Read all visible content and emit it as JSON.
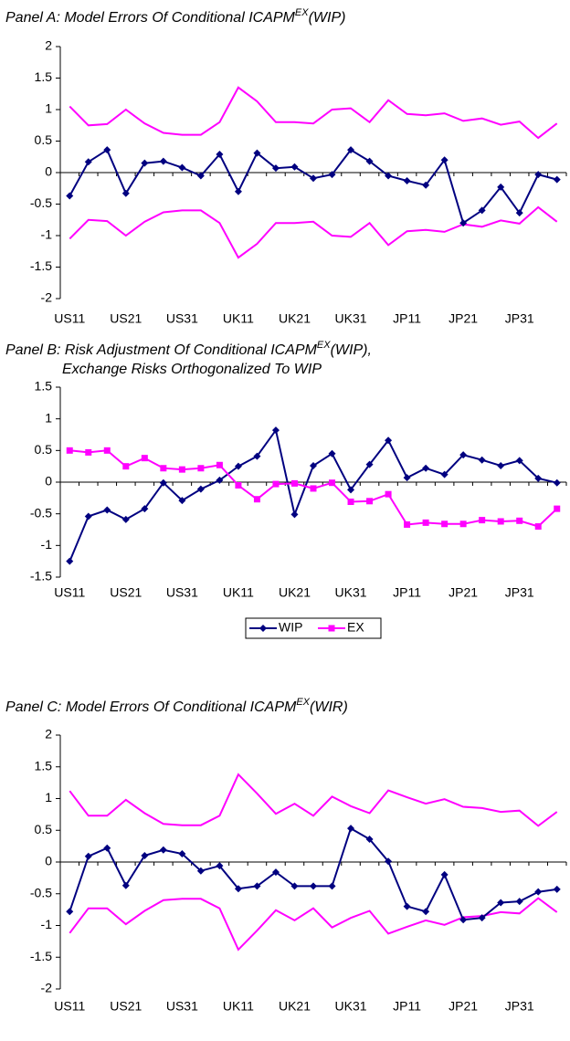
{
  "chart_data": [
    {
      "type": "line",
      "title": {
        "text": "Panel A: Model Errors Of Conditional ICAPM",
        "superscript": "EX",
        "suffix": "(WIP)"
      },
      "categories": [
        "US11",
        null,
        null,
        "US21",
        null,
        null,
        "US31",
        null,
        null,
        "UK11",
        null,
        null,
        "UK21",
        null,
        null,
        "UK31",
        null,
        null,
        "JP11",
        null,
        null,
        "JP21",
        null,
        null,
        "JP31",
        null,
        null
      ],
      "ylim": [
        -2,
        2
      ],
      "yticks": [
        -2,
        -1.5,
        -1,
        -0.5,
        0,
        0.5,
        1,
        1.5,
        2
      ],
      "series": [
        {
          "color": "#ff00ff",
          "marker": "none",
          "values": [
            1.05,
            0.75,
            0.77,
            1.0,
            0.78,
            0.63,
            0.6,
            0.6,
            0.8,
            1.35,
            1.13,
            0.8,
            0.8,
            0.78,
            1.0,
            1.02,
            0.8,
            1.15,
            0.93,
            0.91,
            0.94,
            0.82,
            0.86,
            0.76,
            0.81,
            0.55,
            0.78
          ]
        },
        {
          "color": "#ff00ff",
          "marker": "none",
          "values": [
            -1.05,
            -0.75,
            -0.77,
            -1.0,
            -0.78,
            -0.63,
            -0.6,
            -0.6,
            -0.8,
            -1.35,
            -1.13,
            -0.8,
            -0.8,
            -0.78,
            -1.0,
            -1.02,
            -0.8,
            -1.15,
            -0.93,
            -0.91,
            -0.94,
            -0.82,
            -0.86,
            -0.76,
            -0.81,
            -0.55,
            -0.78
          ]
        },
        {
          "color": "#000080",
          "marker": "diamond",
          "values": [
            -0.37,
            0.17,
            0.36,
            -0.33,
            0.15,
            0.18,
            0.08,
            -0.05,
            0.29,
            -0.3,
            0.31,
            0.07,
            0.09,
            -0.09,
            -0.03,
            0.36,
            0.18,
            -0.05,
            -0.13,
            -0.2,
            0.2,
            -0.8,
            -0.6,
            -0.23,
            -0.64,
            -0.03,
            -0.11
          ]
        }
      ]
    },
    {
      "type": "line",
      "title": {
        "text": "Panel B: Risk Adjustment Of Conditional ICAPM",
        "superscript": "EX",
        "suffix": "(WIP),"
      },
      "subtitle": "Exchange Risks Orthogonalized To WIP",
      "categories": [
        "US11",
        null,
        null,
        "US21",
        null,
        null,
        "US31",
        null,
        null,
        "UK11",
        null,
        null,
        "UK21",
        null,
        null,
        "UK31",
        null,
        null,
        "JP11",
        null,
        null,
        "JP21",
        null,
        null,
        "JP31",
        null,
        null
      ],
      "ylim": [
        -1.5,
        1.5
      ],
      "yticks": [
        -1.5,
        -1,
        -0.5,
        0,
        0.5,
        1,
        1.5
      ],
      "legend": "bottom",
      "series": [
        {
          "name": "WIP",
          "color": "#000080",
          "marker": "diamond",
          "values": [
            -1.25,
            -0.54,
            -0.44,
            -0.59,
            -0.42,
            -0.01,
            -0.29,
            -0.11,
            0.03,
            0.25,
            0.41,
            0.82,
            -0.51,
            0.26,
            0.45,
            -0.12,
            0.28,
            0.66,
            0.07,
            0.22,
            0.12,
            0.43,
            0.35,
            0.26,
            0.34,
            0.06,
            -0.01
          ]
        },
        {
          "name": "EX",
          "color": "#ff00ff",
          "marker": "square",
          "values": [
            0.5,
            0.47,
            0.5,
            0.25,
            0.38,
            0.22,
            0.2,
            0.22,
            0.27,
            -0.05,
            -0.27,
            -0.03,
            -0.02,
            -0.1,
            -0.01,
            -0.31,
            -0.3,
            -0.19,
            -0.67,
            -0.64,
            -0.66,
            -0.66,
            -0.6,
            -0.62,
            -0.61,
            -0.7,
            -0.42
          ]
        }
      ]
    },
    {
      "type": "line",
      "title": {
        "text": "Panel C: Model Errors Of Conditional ICAPM",
        "superscript": "EX",
        "suffix": "(WIR)"
      },
      "categories": [
        "US11",
        null,
        null,
        "US21",
        null,
        null,
        "US31",
        null,
        null,
        "UK11",
        null,
        null,
        "UK21",
        null,
        null,
        "UK31",
        null,
        null,
        "JP11",
        null,
        null,
        "JP21",
        null,
        null,
        "JP31",
        null,
        null
      ],
      "ylim": [
        -2,
        2
      ],
      "yticks": [
        -2,
        -1.5,
        -1,
        -0.5,
        0,
        0.5,
        1,
        1.5,
        2
      ],
      "series": [
        {
          "color": "#ff00ff",
          "marker": "none",
          "values": [
            1.12,
            0.73,
            0.73,
            0.98,
            0.77,
            0.6,
            0.58,
            0.58,
            0.73,
            1.38,
            1.08,
            0.76,
            0.92,
            0.73,
            1.03,
            0.88,
            0.77,
            1.13,
            1.02,
            0.92,
            0.99,
            0.87,
            0.85,
            0.79,
            0.81,
            0.57,
            0.79
          ]
        },
        {
          "color": "#ff00ff",
          "marker": "none",
          "values": [
            -1.12,
            -0.73,
            -0.73,
            -0.98,
            -0.77,
            -0.6,
            -0.58,
            -0.58,
            -0.73,
            -1.38,
            -1.08,
            -0.76,
            -0.92,
            -0.73,
            -1.03,
            -0.88,
            -0.77,
            -1.13,
            -1.02,
            -0.92,
            -0.99,
            -0.87,
            -0.85,
            -0.79,
            -0.81,
            -0.57,
            -0.79
          ]
        },
        {
          "color": "#000080",
          "marker": "diamond",
          "values": [
            -0.78,
            0.09,
            0.22,
            -0.37,
            0.1,
            0.19,
            0.13,
            -0.14,
            -0.06,
            -0.42,
            -0.38,
            -0.16,
            -0.38,
            -0.38,
            -0.38,
            0.53,
            0.36,
            0.01,
            -0.7,
            -0.78,
            -0.2,
            -0.91,
            -0.88,
            -0.64,
            -0.62,
            -0.47,
            -0.43
          ]
        }
      ]
    }
  ]
}
